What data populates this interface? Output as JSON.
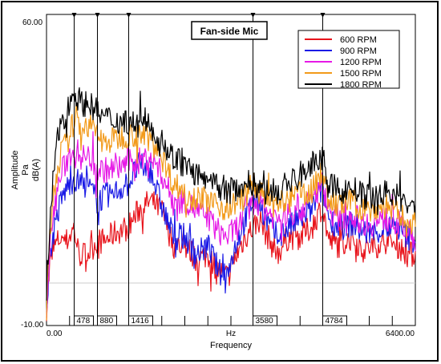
{
  "chart_data": {
    "type": "line",
    "title": "Fan-side Mic",
    "xlabel": "Frequency",
    "x_unit": "Hz",
    "ylabel_lines": [
      "Amplitude",
      "Pa",
      "dB(A)"
    ],
    "xlim": [
      0,
      6400
    ],
    "ylim": [
      -10,
      60
    ],
    "x_tick_labels": [
      "0.00",
      "6400.00"
    ],
    "y_tick_labels": [
      "60.00",
      "-10.00"
    ],
    "grid": false,
    "legend_position": "top-right",
    "cursors": [
      478,
      880,
      1416,
      3580,
      4784
    ],
    "cursor_labels": [
      "478",
      "880",
      "1416",
      "3580",
      "4784"
    ],
    "series": [
      {
        "name": "600 RPM",
        "color": "#e8141c",
        "points": [
          [
            0,
            -6
          ],
          [
            60,
            4
          ],
          [
            150,
            8
          ],
          [
            250,
            10
          ],
          [
            350,
            9
          ],
          [
            478,
            12
          ],
          [
            560,
            6
          ],
          [
            700,
            6
          ],
          [
            880,
            9
          ],
          [
            1000,
            9
          ],
          [
            1200,
            11
          ],
          [
            1416,
            12
          ],
          [
            1600,
            16
          ],
          [
            1800,
            18
          ],
          [
            2000,
            16
          ],
          [
            2200,
            8
          ],
          [
            2400,
            8
          ],
          [
            2600,
            5
          ],
          [
            2800,
            6
          ],
          [
            3000,
            2
          ],
          [
            3150,
            1
          ],
          [
            3300,
            6
          ],
          [
            3450,
            10
          ],
          [
            3580,
            12
          ],
          [
            3700,
            14
          ],
          [
            3800,
            11
          ],
          [
            4000,
            6
          ],
          [
            4200,
            10
          ],
          [
            4400,
            10
          ],
          [
            4600,
            12
          ],
          [
            4784,
            17
          ],
          [
            4900,
            9
          ],
          [
            5100,
            8
          ],
          [
            5300,
            10
          ],
          [
            5500,
            7
          ],
          [
            5700,
            8
          ],
          [
            5900,
            9
          ],
          [
            6100,
            8
          ],
          [
            6250,
            6
          ],
          [
            6400,
            6
          ]
        ]
      },
      {
        "name": "900 RPM",
        "color": "#1a1ae6",
        "points": [
          [
            0,
            -6
          ],
          [
            60,
            6
          ],
          [
            150,
            13
          ],
          [
            250,
            18
          ],
          [
            350,
            21
          ],
          [
            478,
            23
          ],
          [
            600,
            22
          ],
          [
            750,
            21
          ],
          [
            880,
            18
          ],
          [
            1000,
            19
          ],
          [
            1200,
            20
          ],
          [
            1416,
            22
          ],
          [
            1600,
            26
          ],
          [
            1800,
            25
          ],
          [
            2000,
            17
          ],
          [
            2200,
            10
          ],
          [
            2400,
            10
          ],
          [
            2600,
            6
          ],
          [
            2800,
            8
          ],
          [
            3000,
            2
          ],
          [
            3150,
            2
          ],
          [
            3300,
            9
          ],
          [
            3450,
            14
          ],
          [
            3580,
            18
          ],
          [
            3700,
            18
          ],
          [
            3800,
            14
          ],
          [
            4000,
            10
          ],
          [
            4200,
            12
          ],
          [
            4400,
            14
          ],
          [
            4600,
            16
          ],
          [
            4784,
            21
          ],
          [
            4900,
            14
          ],
          [
            5100,
            12
          ],
          [
            5300,
            13
          ],
          [
            5500,
            11
          ],
          [
            5700,
            11
          ],
          [
            5900,
            12
          ],
          [
            6100,
            12
          ],
          [
            6250,
            10
          ],
          [
            6400,
            9
          ]
        ]
      },
      {
        "name": "1200 RPM",
        "color": "#e619e6",
        "points": [
          [
            0,
            -6
          ],
          [
            60,
            8
          ],
          [
            150,
            18
          ],
          [
            250,
            24
          ],
          [
            350,
            27
          ],
          [
            478,
            30
          ],
          [
            600,
            28
          ],
          [
            750,
            28
          ],
          [
            880,
            25
          ],
          [
            1000,
            25
          ],
          [
            1200,
            25
          ],
          [
            1416,
            27
          ],
          [
            1600,
            27
          ],
          [
            1800,
            28
          ],
          [
            2000,
            24
          ],
          [
            2200,
            18
          ],
          [
            2400,
            18
          ],
          [
            2600,
            16
          ],
          [
            2800,
            14
          ],
          [
            3000,
            11
          ],
          [
            3150,
            10
          ],
          [
            3300,
            12
          ],
          [
            3450,
            15
          ],
          [
            3580,
            17
          ],
          [
            3700,
            18
          ],
          [
            3800,
            16
          ],
          [
            4000,
            14
          ],
          [
            4200,
            15
          ],
          [
            4400,
            16
          ],
          [
            4600,
            18
          ],
          [
            4784,
            22
          ],
          [
            4900,
            16
          ],
          [
            5100,
            14
          ],
          [
            5300,
            15
          ],
          [
            5500,
            13
          ],
          [
            5700,
            13
          ],
          [
            5900,
            14
          ],
          [
            6100,
            13
          ],
          [
            6250,
            11
          ],
          [
            6400,
            10
          ]
        ]
      },
      {
        "name": "1500 RPM",
        "color": "#f29a1a",
        "points": [
          [
            0,
            -6
          ],
          [
            60,
            10
          ],
          [
            150,
            22
          ],
          [
            250,
            29
          ],
          [
            350,
            31
          ],
          [
            478,
            36
          ],
          [
            600,
            35
          ],
          [
            750,
            35
          ],
          [
            880,
            33
          ],
          [
            1000,
            31
          ],
          [
            1200,
            32
          ],
          [
            1416,
            33
          ],
          [
            1600,
            33
          ],
          [
            1800,
            32
          ],
          [
            2000,
            28
          ],
          [
            2200,
            22
          ],
          [
            2400,
            20
          ],
          [
            2600,
            19
          ],
          [
            2800,
            18
          ],
          [
            3000,
            17
          ],
          [
            3150,
            16
          ],
          [
            3300,
            18
          ],
          [
            3450,
            19
          ],
          [
            3580,
            22
          ],
          [
            3700,
            20
          ],
          [
            3800,
            18
          ],
          [
            4000,
            17
          ],
          [
            4200,
            18
          ],
          [
            4400,
            20
          ],
          [
            4600,
            20
          ],
          [
            4784,
            25
          ],
          [
            4900,
            18
          ],
          [
            5100,
            17
          ],
          [
            5300,
            18
          ],
          [
            5500,
            16
          ],
          [
            5700,
            16
          ],
          [
            5900,
            17
          ],
          [
            6100,
            15
          ],
          [
            6250,
            14
          ],
          [
            6400,
            13
          ]
        ]
      },
      {
        "name": "1800 RPM",
        "color": "#000000",
        "points": [
          [
            0,
            -6
          ],
          [
            60,
            14
          ],
          [
            150,
            28
          ],
          [
            250,
            36
          ],
          [
            350,
            38
          ],
          [
            478,
            43
          ],
          [
            600,
            40
          ],
          [
            750,
            40
          ],
          [
            880,
            38
          ],
          [
            1000,
            37
          ],
          [
            1200,
            36
          ],
          [
            1416,
            36
          ],
          [
            1600,
            35
          ],
          [
            1800,
            35
          ],
          [
            2000,
            31
          ],
          [
            2200,
            28
          ],
          [
            2400,
            26
          ],
          [
            2600,
            24
          ],
          [
            2800,
            22
          ],
          [
            3000,
            21
          ],
          [
            3150,
            20
          ],
          [
            3300,
            21
          ],
          [
            3450,
            22
          ],
          [
            3580,
            22
          ],
          [
            3700,
            21
          ],
          [
            3800,
            20
          ],
          [
            4000,
            20
          ],
          [
            4200,
            22
          ],
          [
            4400,
            24
          ],
          [
            4600,
            26
          ],
          [
            4784,
            28
          ],
          [
            4900,
            22
          ],
          [
            5100,
            20
          ],
          [
            5300,
            21
          ],
          [
            5500,
            19
          ],
          [
            5700,
            19
          ],
          [
            5900,
            20
          ],
          [
            6100,
            19
          ],
          [
            6250,
            17
          ],
          [
            6400,
            16
          ]
        ]
      }
    ]
  }
}
